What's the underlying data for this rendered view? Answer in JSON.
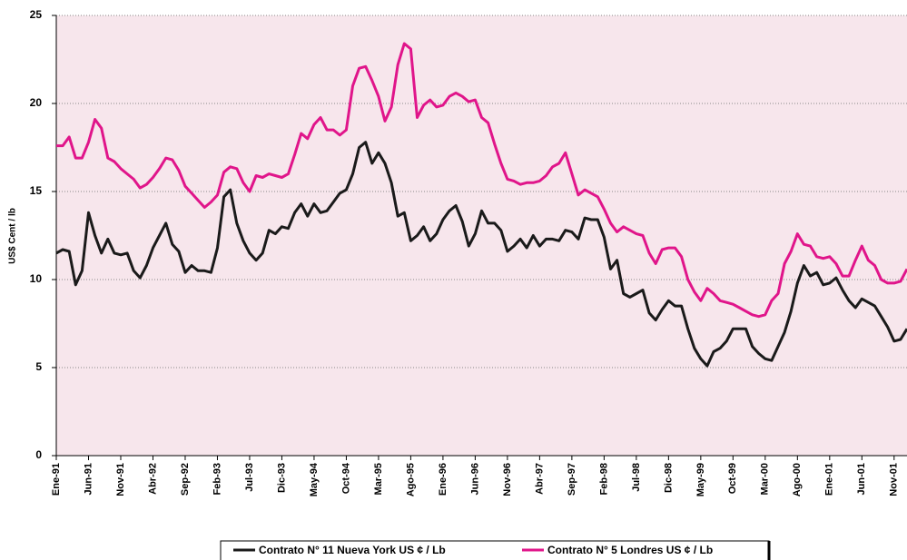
{
  "chart_data": {
    "type": "line",
    "y_label": "US$ Cent / lb",
    "categories": [
      "Ene-91",
      null,
      null,
      null,
      null,
      "Jun-91",
      null,
      null,
      null,
      null,
      "Nov-91",
      null,
      null,
      null,
      null,
      "Abr-92",
      null,
      null,
      null,
      null,
      "Sep-92",
      null,
      null,
      null,
      null,
      "Feb-93",
      null,
      null,
      null,
      null,
      "Jul-93",
      null,
      null,
      null,
      null,
      "Dic-93",
      null,
      null,
      null,
      null,
      "May-94",
      null,
      null,
      null,
      null,
      "Oct-94",
      null,
      null,
      null,
      null,
      "Mar-95",
      null,
      null,
      null,
      null,
      "Ago-95",
      null,
      null,
      null,
      null,
      "Ene-96",
      null,
      null,
      null,
      null,
      "Jun-96",
      null,
      null,
      null,
      null,
      "Nov-96",
      null,
      null,
      null,
      null,
      "Abr-97",
      null,
      null,
      null,
      null,
      "Sep-97",
      null,
      null,
      null,
      null,
      "Feb-98",
      null,
      null,
      null,
      null,
      "Jul-98",
      null,
      null,
      null,
      null,
      "Dic-98",
      null,
      null,
      null,
      null,
      "May-99",
      null,
      null,
      null,
      null,
      "Oct-99",
      null,
      null,
      null,
      null,
      "Mar-00",
      null,
      null,
      null,
      null,
      "Ago-00",
      null,
      null,
      null,
      null,
      "Ene-01",
      null,
      null,
      null,
      null,
      "Jun-01",
      null,
      null,
      null,
      null,
      "Nov-01",
      null,
      null
    ],
    "series": [
      {
        "name": "Contrato N° 11 Nueva York US ¢ / Lb",
        "color": "#1a1a1a",
        "values": [
          11.5,
          11.7,
          11.6,
          9.7,
          10.5,
          13.8,
          12.5,
          11.5,
          12.3,
          11.5,
          11.4,
          11.5,
          10.5,
          10.1,
          10.8,
          11.8,
          12.5,
          13.2,
          12.0,
          11.6,
          10.4,
          10.8,
          10.5,
          10.5,
          10.4,
          11.8,
          14.7,
          15.1,
          13.2,
          12.2,
          11.5,
          11.1,
          11.5,
          12.8,
          12.6,
          13.0,
          12.9,
          13.8,
          14.3,
          13.6,
          14.3,
          13.8,
          13.9,
          14.4,
          14.9,
          15.1,
          16.0,
          17.5,
          17.8,
          16.6,
          17.2,
          16.6,
          15.5,
          13.6,
          13.8,
          12.2,
          12.5,
          13.0,
          12.2,
          12.6,
          13.4,
          13.9,
          14.2,
          13.3,
          11.9,
          12.6,
          13.9,
          13.2,
          13.2,
          12.8,
          11.6,
          11.9,
          12.3,
          11.8,
          12.5,
          11.9,
          12.3,
          12.3,
          12.2,
          12.8,
          12.7,
          12.3,
          13.5,
          13.4,
          13.4,
          12.4,
          10.6,
          11.1,
          9.2,
          9.0,
          9.2,
          9.4,
          8.1,
          7.7,
          8.3,
          8.8,
          8.5,
          8.5,
          7.2,
          6.1,
          5.5,
          5.1,
          5.9,
          6.1,
          6.5,
          7.2,
          7.2,
          7.2,
          6.2,
          5.8,
          5.5,
          5.4,
          6.2,
          7.0,
          8.2,
          9.8,
          10.8,
          10.2,
          10.4,
          9.7,
          9.8,
          10.1,
          9.4,
          8.8,
          8.4,
          8.9,
          8.7,
          8.5,
          7.9,
          7.3,
          6.5,
          6.6,
          7.2
        ]
      },
      {
        "name": "Contrato N° 5 Londres US ¢ / Lb",
        "color": "#e0158a",
        "values": [
          17.6,
          17.6,
          18.1,
          16.9,
          16.9,
          17.8,
          19.1,
          18.6,
          16.9,
          16.7,
          16.3,
          16.0,
          15.7,
          15.2,
          15.4,
          15.8,
          16.3,
          16.9,
          16.8,
          16.2,
          15.3,
          14.9,
          14.5,
          14.1,
          14.4,
          14.8,
          16.1,
          16.4,
          16.3,
          15.5,
          15.0,
          15.9,
          15.8,
          16.0,
          15.9,
          15.8,
          16.0,
          17.1,
          18.3,
          18.0,
          18.8,
          19.2,
          18.5,
          18.5,
          18.2,
          18.5,
          21.0,
          22.0,
          22.1,
          21.3,
          20.4,
          19.0,
          19.8,
          22.2,
          23.4,
          23.1,
          19.2,
          19.9,
          20.2,
          19.8,
          19.9,
          20.4,
          20.6,
          20.4,
          20.1,
          20.2,
          19.2,
          18.9,
          17.7,
          16.6,
          15.7,
          15.6,
          15.4,
          15.5,
          15.5,
          15.6,
          15.9,
          16.4,
          16.6,
          17.2,
          16.0,
          14.8,
          15.1,
          14.9,
          14.7,
          14.0,
          13.2,
          12.7,
          13.0,
          12.8,
          12.6,
          12.5,
          11.5,
          10.9,
          11.7,
          11.8,
          11.8,
          11.3,
          10.0,
          9.3,
          8.8,
          9.5,
          9.2,
          8.8,
          8.7,
          8.6,
          8.4,
          8.2,
          8.0,
          7.9,
          8.0,
          8.8,
          9.2,
          10.9,
          11.6,
          12.6,
          12.0,
          11.9,
          11.3,
          11.2,
          11.3,
          10.9,
          10.2,
          10.2,
          11.1,
          11.9,
          11.1,
          10.8,
          10.0,
          9.8,
          9.8,
          9.9,
          10.6
        ]
      }
    ],
    "ylim": [
      0,
      25
    ],
    "yticks": [
      0,
      5,
      10,
      15,
      20,
      25
    ],
    "grid": true
  }
}
